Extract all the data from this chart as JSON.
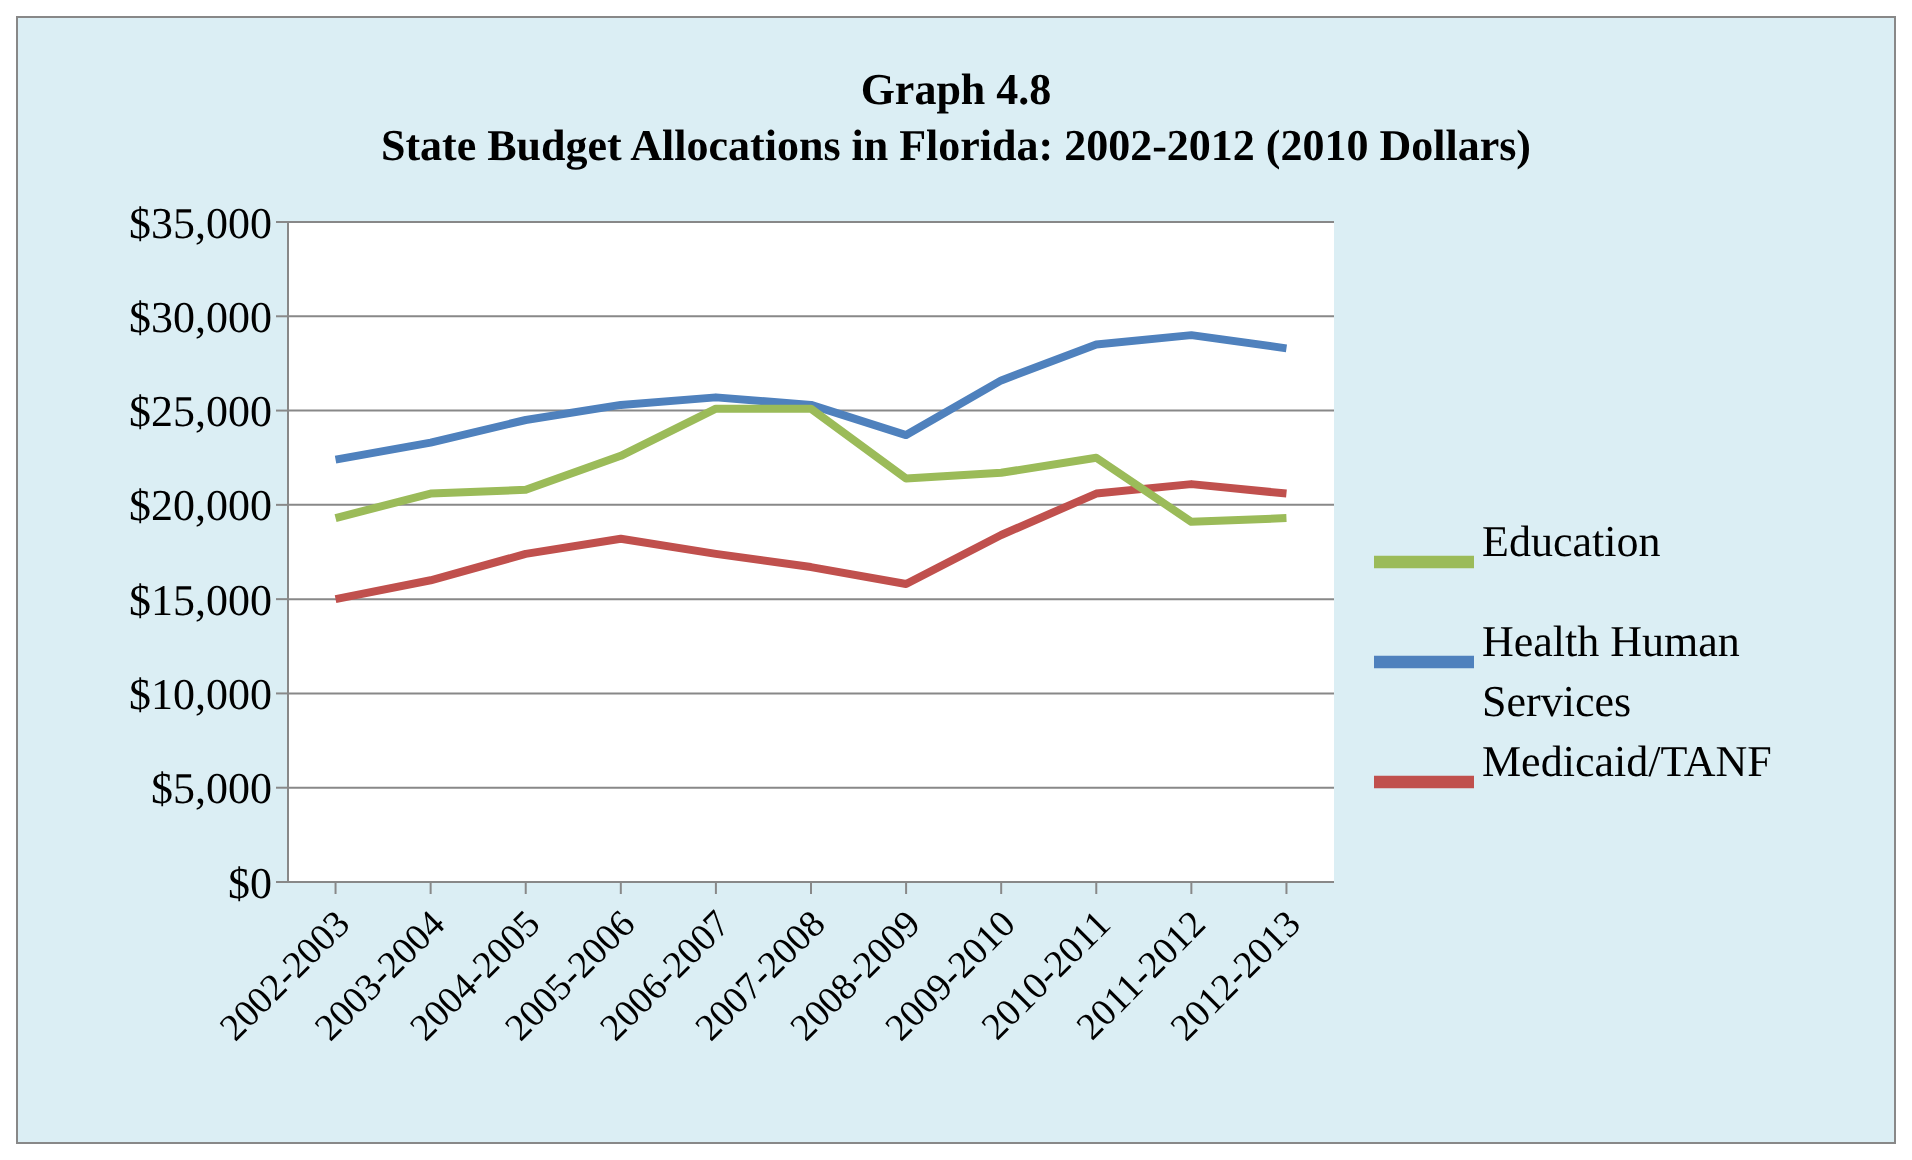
{
  "chart_data": {
    "type": "line",
    "title": "Graph 4.8\nState Budget Allocations in Florida: 2002-2012 (2010 Dollars)",
    "categories": [
      "2002-2003",
      "2003-2004",
      "2004-2005",
      "2005-2006",
      "2006-2007",
      "2007-2008",
      "2008-2009",
      "2009-2010",
      "2010-2011",
      "2011-2012",
      "2012-2013"
    ],
    "series": [
      {
        "name": "Health Human Services",
        "color": "#4f81bd",
        "values": [
          22400,
          23300,
          24500,
          25300,
          25700,
          25300,
          23700,
          26600,
          28500,
          29000,
          28300
        ]
      },
      {
        "name": "Medicaid/TANF",
        "color": "#c0504d",
        "values": [
          15000,
          16000,
          17400,
          18200,
          17400,
          16700,
          15800,
          18400,
          20600,
          21100,
          20600
        ]
      },
      {
        "name": "Education",
        "color": "#9bbb59",
        "values": [
          19300,
          20600,
          20800,
          22600,
          25100,
          25100,
          21400,
          21700,
          22500,
          19100,
          19300
        ]
      }
    ],
    "ylim": [
      0,
      35000
    ],
    "yticks": [
      {
        "value": 0,
        "label": "$0"
      },
      {
        "value": 5000,
        "label": "$5,000"
      },
      {
        "value": 10000,
        "label": "$10,000"
      },
      {
        "value": 15000,
        "label": "$15,000"
      },
      {
        "value": 20000,
        "label": "$20,000"
      },
      {
        "value": 25000,
        "label": "$25,000"
      },
      {
        "value": 30000,
        "label": "$30,000"
      },
      {
        "value": 35000,
        "label": "$35,000"
      }
    ],
    "grid": "y",
    "legend": "right",
    "marker": "none",
    "line_style": "solid"
  }
}
